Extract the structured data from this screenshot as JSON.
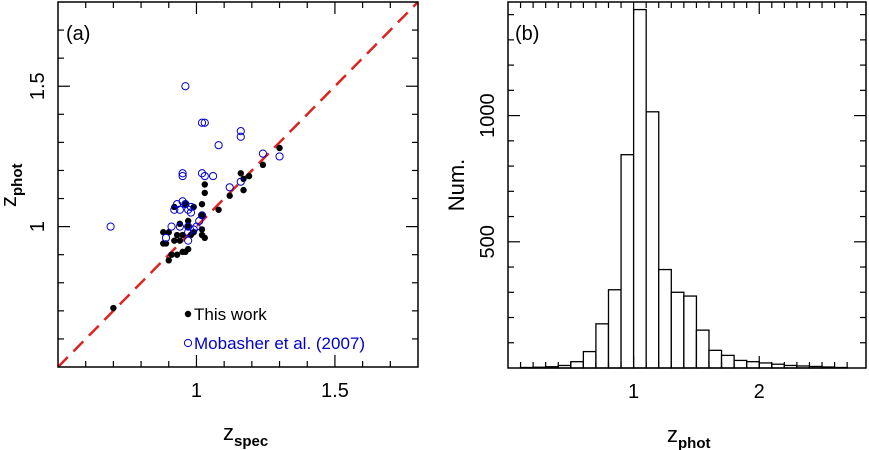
{
  "chart_data": [
    {
      "panel_label": "(a)",
      "type": "scatter",
      "xlabel_main": "z",
      "xlabel_sub": "spec",
      "ylabel_main": "z",
      "ylabel_sub": "phot",
      "xlim": [
        0.5,
        1.8
      ],
      "ylim": [
        0.5,
        1.8
      ],
      "xticks": [
        1,
        1.5
      ],
      "yticks": [
        1,
        1.5
      ],
      "xtick_labels": [
        "1",
        "1.5"
      ],
      "ytick_labels": [
        "1",
        "1.5"
      ],
      "reference_line": {
        "x": [
          0.5,
          1.8
        ],
        "y": [
          0.5,
          1.8
        ],
        "color": "#dd2222",
        "style": "dashed"
      },
      "legend": {
        "position": "bottom-right"
      },
      "series": [
        {
          "name": "This work",
          "marker": "filled-circle",
          "color": "#000000",
          "points": [
            [
              0.7,
              0.71
            ],
            [
              0.88,
              0.94
            ],
            [
              0.88,
              0.98
            ],
            [
              0.89,
              0.94
            ],
            [
              0.9,
              0.98
            ],
            [
              0.9,
              0.88
            ],
            [
              0.91,
              0.9
            ],
            [
              0.92,
              0.95
            ],
            [
              0.92,
              1.07
            ],
            [
              0.93,
              0.97
            ],
            [
              0.93,
              0.9
            ],
            [
              0.94,
              0.95
            ],
            [
              0.94,
              1.01
            ],
            [
              0.95,
              0.91
            ],
            [
              0.95,
              0.97
            ],
            [
              0.96,
              0.91
            ],
            [
              0.96,
              1.08
            ],
            [
              0.97,
              1.0
            ],
            [
              0.97,
              1.02
            ],
            [
              0.97,
              0.92
            ],
            [
              0.98,
              0.97
            ],
            [
              0.99,
              0.98
            ],
            [
              0.99,
              1.07
            ],
            [
              1.02,
              0.99
            ],
            [
              1.02,
              0.97
            ],
            [
              1.02,
              1.04
            ],
            [
              1.02,
              1.08
            ],
            [
              1.03,
              1.12
            ],
            [
              1.03,
              1.15
            ],
            [
              1.03,
              0.96
            ],
            [
              1.08,
              1.06
            ],
            [
              1.12,
              1.11
            ],
            [
              1.16,
              1.19
            ],
            [
              1.17,
              1.13
            ],
            [
              1.17,
              1.17
            ],
            [
              1.19,
              1.18
            ],
            [
              1.24,
              1.22
            ],
            [
              1.3,
              1.28
            ]
          ]
        },
        {
          "name": "Mobasher et al. (2007)",
          "marker": "open-circle",
          "color": "#0000cc",
          "points": [
            [
              0.69,
              1.0
            ],
            [
              0.89,
              0.96
            ],
            [
              0.91,
              1.0
            ],
            [
              0.92,
              1.06
            ],
            [
              0.93,
              1.08
            ],
            [
              0.94,
              1.0
            ],
            [
              0.94,
              1.06
            ],
            [
              0.95,
              1.18
            ],
            [
              0.95,
              1.19
            ],
            [
              0.95,
              1.09
            ],
            [
              0.96,
              1.5
            ],
            [
              0.96,
              1.08
            ],
            [
              0.97,
              1.06
            ],
            [
              0.97,
              1.0
            ],
            [
              0.97,
              0.98
            ],
            [
              0.97,
              0.95
            ],
            [
              0.98,
              1.07
            ],
            [
              0.98,
              1.05
            ],
            [
              0.99,
              0.99
            ],
            [
              1.0,
              1.0
            ],
            [
              1.01,
              1.02
            ],
            [
              1.02,
              1.04
            ],
            [
              1.02,
              1.19
            ],
            [
              1.02,
              1.37
            ],
            [
              1.03,
              1.37
            ],
            [
              1.03,
              1.18
            ],
            [
              1.06,
              1.18
            ],
            [
              1.08,
              1.29
            ],
            [
              1.12,
              1.14
            ],
            [
              1.16,
              1.34
            ],
            [
              1.16,
              1.32
            ],
            [
              1.16,
              1.16
            ],
            [
              1.24,
              1.26
            ],
            [
              1.3,
              1.25
            ]
          ]
        }
      ]
    },
    {
      "panel_label": "(b)",
      "type": "bar",
      "histogram": true,
      "xlabel_main": "z",
      "xlabel_sub": "phot",
      "ylabel": "Num.",
      "xlim": [
        0.0,
        2.85
      ],
      "ylim": [
        0,
        1450
      ],
      "xticks": [
        1,
        2
      ],
      "yticks": [
        500,
        1000
      ],
      "xtick_labels": [
        "1",
        "2"
      ],
      "ytick_labels": [
        "500",
        "1000"
      ],
      "bin_edges": [
        0.1,
        0.2,
        0.3,
        0.4,
        0.5,
        0.6,
        0.7,
        0.8,
        0.9,
        1.0,
        1.1,
        1.2,
        1.3,
        1.4,
        1.5,
        1.6,
        1.7,
        1.8,
        1.9,
        2.0,
        2.1,
        2.2,
        2.3,
        2.4,
        2.5,
        2.6,
        2.7
      ],
      "values": [
        2,
        3,
        5,
        10,
        25,
        65,
        175,
        310,
        845,
        1420,
        1015,
        390,
        300,
        285,
        150,
        70,
        50,
        30,
        25,
        20,
        15,
        10,
        8,
        6,
        4,
        2
      ]
    }
  ]
}
